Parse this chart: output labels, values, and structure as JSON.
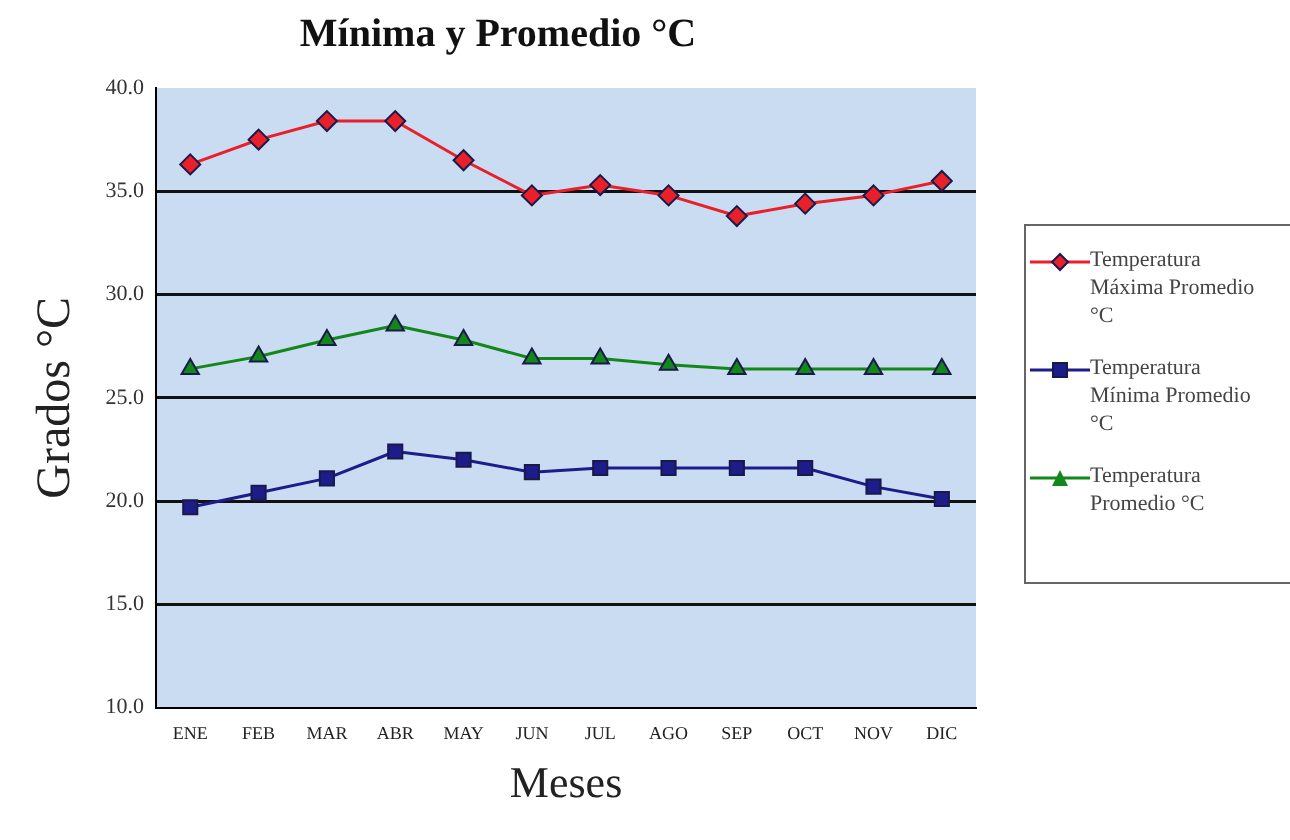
{
  "chart_data": {
    "type": "line",
    "title": "Mínima y Promedio °C",
    "xlabel": "Meses",
    "ylabel": "Grados °C",
    "categories": [
      "ENE",
      "FEB",
      "MAR",
      "ABR",
      "MAY",
      "JUN",
      "JUL",
      "AGO",
      "SEP",
      "OCT",
      "NOV",
      "DIC"
    ],
    "series": [
      {
        "name": "Temperatura Máxima Promedio °C",
        "color": "#e8202a",
        "marker": "diamond",
        "values": [
          36.3,
          37.5,
          38.4,
          38.4,
          36.5,
          34.8,
          35.3,
          34.8,
          33.8,
          34.4,
          34.8,
          35.5
        ]
      },
      {
        "name": "Temperatura Mínima Promedio °C",
        "color": "#1c1c8a",
        "marker": "square",
        "values": [
          19.7,
          20.4,
          21.1,
          22.4,
          22.0,
          21.4,
          21.6,
          21.6,
          21.6,
          21.6,
          20.7,
          20.1
        ]
      },
      {
        "name": "Temperatura Promedio °C",
        "color": "#12881a",
        "marker": "triangle",
        "values": [
          26.4,
          27.0,
          27.8,
          28.5,
          27.8,
          26.9,
          26.9,
          26.6,
          26.4,
          26.4,
          26.4,
          26.4
        ]
      }
    ],
    "ylim": [
      10,
      40
    ],
    "yticks": [
      {
        "value": 10,
        "label": "10.0"
      },
      {
        "value": 15,
        "label": "15.0"
      },
      {
        "value": 20,
        "label": "20.0"
      },
      {
        "value": 25,
        "label": "25.0"
      },
      {
        "value": 30,
        "label": "30.0"
      },
      {
        "value": 35,
        "label": "35.0"
      },
      {
        "value": 40,
        "label": "40.0"
      }
    ],
    "grid": "y",
    "legend": "right",
    "line_style": "solid"
  }
}
